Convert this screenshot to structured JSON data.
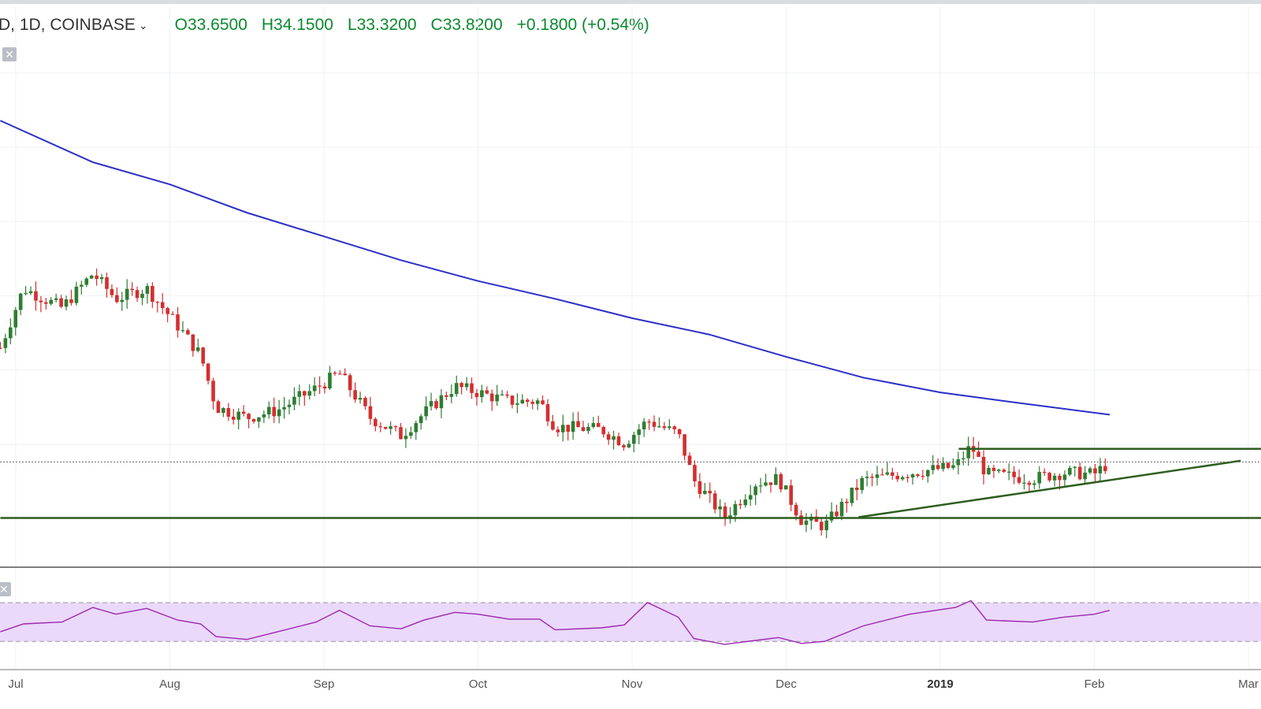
{
  "header": {
    "symbol": "D, 1D, COINBASE",
    "open": "O33.6500",
    "high": "H34.1500",
    "low": "L33.3200",
    "close": "C33.8200",
    "change": "+0.1800 (+0.54%)"
  },
  "icons": {
    "dropdown": "chevron-down-icon",
    "close": "close-icon"
  },
  "colors": {
    "up": "#2e7d32",
    "down": "#d32f2f",
    "ma": "#2a2fc7",
    "trend": "#2e5e1f",
    "rsi": "#9c27b0",
    "rsi_band": "#ead9fb",
    "grid": "#eef1f5"
  },
  "chart_data": [
    {
      "type": "candlestick",
      "title": "",
      "x": [
        "Jul",
        "Aug",
        "Sep",
        "Oct",
        "Nov",
        "Dec",
        "2019",
        "Feb",
        "Mar"
      ],
      "ylim": [
        27,
        62
      ],
      "last_close": 33.82,
      "anchors": [
        [
          -0.1,
          41.5
        ],
        [
          0.05,
          45.5
        ],
        [
          0.3,
          44.2
        ],
        [
          0.5,
          46.5
        ],
        [
          0.65,
          44.8
        ],
        [
          0.85,
          45.5
        ],
        [
          1.05,
          43.0
        ],
        [
          1.2,
          41.0
        ],
        [
          1.3,
          37.5
        ],
        [
          1.5,
          36.8
        ],
        [
          1.7,
          37.3
        ],
        [
          1.95,
          38.8
        ],
        [
          2.1,
          39.8
        ],
        [
          2.3,
          36.8
        ],
        [
          2.5,
          35.6
        ],
        [
          2.65,
          37.1
        ],
        [
          2.85,
          38.9
        ],
        [
          3.0,
          38.5
        ],
        [
          3.2,
          37.9
        ],
        [
          3.4,
          37.9
        ],
        [
          3.5,
          36.2
        ],
        [
          3.8,
          36.0
        ],
        [
          3.95,
          35.1
        ],
        [
          4.1,
          36.6
        ],
        [
          4.3,
          35.7
        ],
        [
          4.4,
          32.6
        ],
        [
          4.6,
          30.1
        ],
        [
          4.8,
          32.4
        ],
        [
          4.95,
          32.7
        ],
        [
          5.1,
          29.9
        ],
        [
          5.25,
          29.5
        ],
        [
          5.5,
          32.6
        ],
        [
          5.8,
          33.1
        ],
        [
          6.1,
          33.5
        ],
        [
          6.2,
          34.9
        ],
        [
          6.3,
          33.0
        ],
        [
          6.6,
          32.7
        ],
        [
          6.8,
          33.1
        ],
        [
          7.0,
          33.0
        ],
        [
          7.1,
          33.8
        ]
      ],
      "series": [
        {
          "name": "",
          "type": "line",
          "values": [
            [
              -0.1,
              56.8
            ],
            [
              0.5,
              54.0
            ],
            [
              1.0,
              52.5
            ],
            [
              1.5,
              50.6
            ],
            [
              2.0,
              49.0
            ],
            [
              2.5,
              47.4
            ],
            [
              3.0,
              46.0
            ],
            [
              3.5,
              44.8
            ],
            [
              4.0,
              43.5
            ],
            [
              4.5,
              42.4
            ],
            [
              5.0,
              40.9
            ],
            [
              5.5,
              39.5
            ],
            [
              6.0,
              38.5
            ],
            [
              6.5,
              37.8
            ],
            [
              7.1,
              37.0
            ]
          ]
        }
      ],
      "lines": [
        {
          "from": [
            -0.1,
            30.05
          ],
          "to": [
            8.1,
            30.05
          ]
        },
        {
          "from": [
            6.12,
            34.7
          ],
          "to": [
            8.1,
            34.7
          ]
        },
        {
          "from": [
            5.47,
            30.1
          ],
          "to": [
            7.95,
            33.9
          ]
        }
      ]
    },
    {
      "type": "line",
      "title": "",
      "ylim": [
        5,
        100
      ],
      "bands": [
        30,
        70
      ],
      "series": [
        {
          "name": "",
          "values": [
            [
              -0.1,
              40
            ],
            [
              0.05,
              48
            ],
            [
              0.3,
              50
            ],
            [
              0.5,
              65
            ],
            [
              0.65,
              58
            ],
            [
              0.85,
              64
            ],
            [
              1.05,
              52
            ],
            [
              1.2,
              48
            ],
            [
              1.3,
              35
            ],
            [
              1.5,
              32
            ],
            [
              1.7,
              40
            ],
            [
              1.95,
              50
            ],
            [
              2.1,
              62
            ],
            [
              2.3,
              46
            ],
            [
              2.5,
              43
            ],
            [
              2.65,
              52
            ],
            [
              2.85,
              60
            ],
            [
              3.0,
              58
            ],
            [
              3.2,
              53
            ],
            [
              3.4,
              53
            ],
            [
              3.5,
              42
            ],
            [
              3.8,
              44
            ],
            [
              3.95,
              47
            ],
            [
              4.1,
              70
            ],
            [
              4.3,
              55
            ],
            [
              4.4,
              33
            ],
            [
              4.6,
              27
            ],
            [
              4.8,
              31
            ],
            [
              4.95,
              34
            ],
            [
              5.1,
              28
            ],
            [
              5.25,
              30
            ],
            [
              5.5,
              46
            ],
            [
              5.8,
              58
            ],
            [
              6.1,
              65
            ],
            [
              6.2,
              72
            ],
            [
              6.3,
              52
            ],
            [
              6.6,
              50
            ],
            [
              6.8,
              55
            ],
            [
              7.0,
              58
            ],
            [
              7.1,
              62
            ]
          ]
        }
      ]
    }
  ]
}
